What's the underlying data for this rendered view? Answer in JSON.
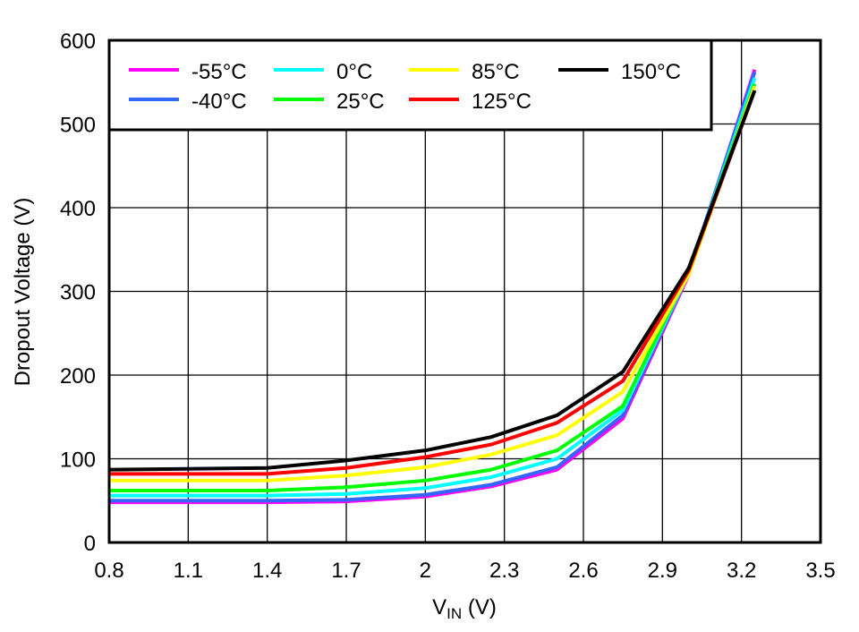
{
  "chart_data": {
    "type": "line",
    "title": "",
    "xlabel_main": "V",
    "xlabel_sub": "IN",
    "xlabel_unit": " (V)",
    "ylabel": "Dropout Voltage (V)",
    "xlim": [
      0.8,
      3.5
    ],
    "ylim": [
      0,
      600
    ],
    "xticks": [
      "0.8",
      "1.1",
      "1.4",
      "1.7",
      "2",
      "2.3",
      "2.6",
      "2.9",
      "3.2",
      "3.5"
    ],
    "yticks": [
      "0",
      "100",
      "200",
      "300",
      "400",
      "500",
      "600"
    ],
    "grid": true,
    "legend_placement": "top-left",
    "x": [
      0.8,
      1.4,
      1.7,
      2.0,
      2.25,
      2.5,
      2.75,
      3.0,
      3.25
    ],
    "series": [
      {
        "name": "-55°C",
        "color": "#FF00FF",
        "values": [
          48,
          48,
          49,
          55,
          67,
          87,
          148,
          320,
          565
        ]
      },
      {
        "name": "-40°C",
        "color": "#3366FF",
        "values": [
          50,
          50,
          51,
          57,
          69,
          90,
          152,
          322,
          562
        ]
      },
      {
        "name": "0°C",
        "color": "#00FFFF",
        "values": [
          56,
          56,
          58,
          65,
          78,
          100,
          158,
          322,
          555
        ]
      },
      {
        "name": "25°C",
        "color": "#00FF00",
        "values": [
          62,
          62,
          66,
          74,
          87,
          110,
          163,
          323,
          548
        ]
      },
      {
        "name": "85°C",
        "color": "#FFFF00",
        "values": [
          74,
          74,
          80,
          90,
          105,
          128,
          180,
          320,
          545
        ]
      },
      {
        "name": "125°C",
        "color": "#FF0000",
        "values": [
          82,
          82,
          89,
          102,
          117,
          143,
          193,
          325,
          540
        ]
      },
      {
        "name": "150°C",
        "color": "#000000",
        "values": [
          87,
          89,
          98,
          110,
          126,
          152,
          204,
          328,
          540
        ]
      }
    ]
  }
}
